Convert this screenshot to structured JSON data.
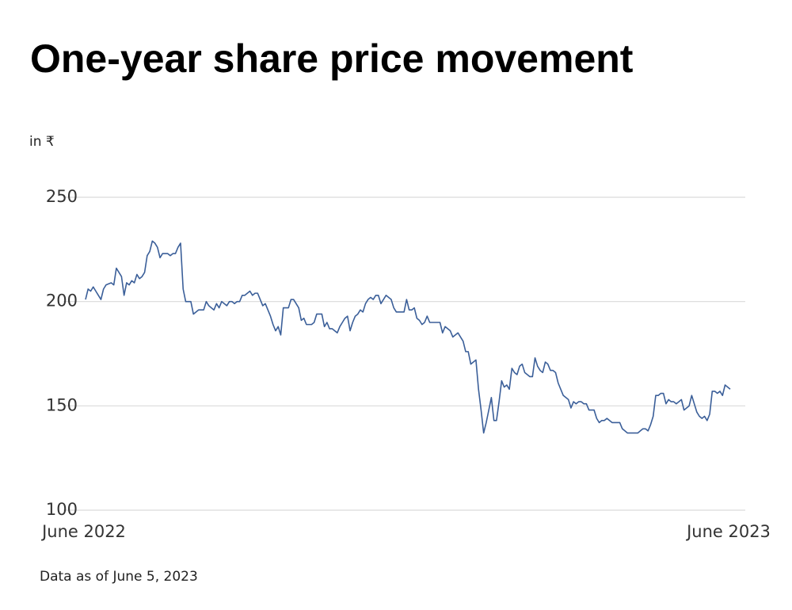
{
  "chart_data": {
    "type": "line",
    "title": "One-year share price movement",
    "y_label": "in ₹",
    "footnote": "Data as of June 5, 2023",
    "categories": [
      "June 2022",
      null,
      null,
      null,
      null,
      null,
      null,
      null,
      null,
      null,
      null,
      null,
      null,
      null,
      null,
      null,
      null,
      null,
      null,
      null,
      null,
      null,
      null,
      null,
      null,
      null,
      null,
      null,
      null,
      null,
      null,
      null,
      null,
      null,
      null,
      null,
      null,
      null,
      null,
      null,
      null,
      null,
      null,
      null,
      null,
      null,
      null,
      null,
      null,
      null,
      null,
      null,
      null,
      null,
      null,
      null,
      null,
      null,
      null,
      null,
      null,
      null,
      null,
      null,
      null,
      null,
      null,
      null,
      null,
      null,
      null,
      null,
      null,
      null,
      null,
      null,
      null,
      null,
      null,
      null,
      null,
      null,
      null,
      null,
      null,
      null,
      null,
      null,
      null,
      null,
      null,
      null,
      null,
      null,
      null,
      null,
      null,
      null,
      null,
      null,
      null,
      null,
      null,
      null,
      null,
      null,
      null,
      null,
      null,
      null,
      null,
      null,
      null,
      null,
      null,
      null,
      null,
      null,
      null,
      null,
      null,
      null,
      null,
      null,
      null,
      null,
      null,
      null,
      null,
      null,
      null,
      null,
      null,
      null,
      null,
      null,
      null,
      null,
      null,
      null,
      null,
      null,
      null,
      null,
      null,
      null,
      null,
      null,
      null,
      null,
      null,
      null,
      null,
      null,
      null,
      null,
      null,
      null,
      null,
      null,
      null,
      null,
      null,
      null,
      null,
      null,
      null,
      null,
      null,
      null,
      null,
      null,
      null,
      null,
      null,
      null,
      null,
      null,
      null,
      null,
      null,
      null,
      null,
      null,
      null,
      null,
      null,
      null,
      null,
      null,
      null,
      null,
      null,
      null,
      null,
      null,
      null,
      null,
      null,
      null,
      null,
      null,
      null,
      null,
      null,
      null,
      null,
      null,
      null,
      null,
      null,
      null,
      null,
      null,
      null,
      null,
      null,
      null,
      null,
      null,
      null,
      null,
      null,
      null,
      null,
      null,
      null,
      null,
      null,
      null,
      null,
      null,
      null,
      null,
      null,
      null,
      null,
      null,
      null,
      null,
      null,
      null,
      null,
      null,
      null,
      null,
      null,
      null,
      null,
      null,
      null,
      "June 2023"
    ],
    "values": [
      201,
      206,
      205,
      207,
      205,
      203,
      201,
      206,
      208,
      208.5,
      209,
      208,
      216,
      214,
      212,
      203,
      209,
      208,
      210,
      209,
      213,
      211,
      212,
      214,
      222,
      224,
      229,
      228,
      226,
      221,
      223,
      223,
      223,
      222,
      223,
      223,
      226,
      228,
      206,
      200,
      200,
      200,
      194,
      195,
      196,
      196,
      196,
      200,
      198,
      197,
      196,
      199,
      197,
      200,
      199,
      198,
      200,
      200,
      199,
      200,
      200,
      203,
      203,
      204,
      205,
      203,
      204,
      204,
      201,
      198,
      199,
      196,
      193,
      189,
      186,
      188,
      184,
      197,
      197,
      197,
      201,
      201,
      199,
      197,
      191,
      192,
      189,
      189,
      189,
      190,
      194,
      194,
      194,
      188,
      190,
      187,
      187,
      186,
      185,
      188,
      190,
      192,
      193,
      186,
      190,
      193,
      194,
      196,
      195,
      199,
      201,
      202,
      201,
      203,
      203,
      199,
      201,
      203,
      202,
      201,
      197,
      195,
      195,
      195,
      195,
      201,
      196,
      196,
      197,
      192,
      191,
      189,
      190,
      193,
      190,
      190,
      190,
      190,
      190,
      185,
      188,
      187,
      186,
      183,
      184,
      185,
      183,
      181,
      176,
      176,
      170,
      171,
      172,
      158,
      148,
      137,
      142,
      148,
      154,
      143,
      143,
      152,
      162,
      159,
      160,
      158,
      168,
      166,
      165,
      169,
      170,
      166,
      165,
      164,
      164,
      173,
      169,
      167,
      166,
      171,
      170,
      167,
      167,
      166,
      161,
      158,
      155,
      154,
      153,
      149,
      152,
      151,
      152,
      152,
      151,
      151,
      148,
      148,
      148,
      144,
      142,
      143,
      143,
      144,
      143,
      142,
      142,
      142,
      142,
      139,
      138,
      137,
      137,
      137,
      137,
      137,
      138,
      139,
      139,
      138,
      141,
      145,
      155,
      155,
      156,
      156,
      151,
      153,
      152,
      152,
      151,
      152,
      153,
      148,
      149,
      150,
      155,
      151,
      147,
      145,
      144,
      145,
      143,
      146,
      157,
      157,
      156,
      157,
      155,
      160,
      159,
      158
    ],
    "color": "#3b5f99",
    "ylim": [
      100,
      250
    ],
    "yticks": [
      100,
      150,
      200,
      250
    ],
    "grid": true
  }
}
